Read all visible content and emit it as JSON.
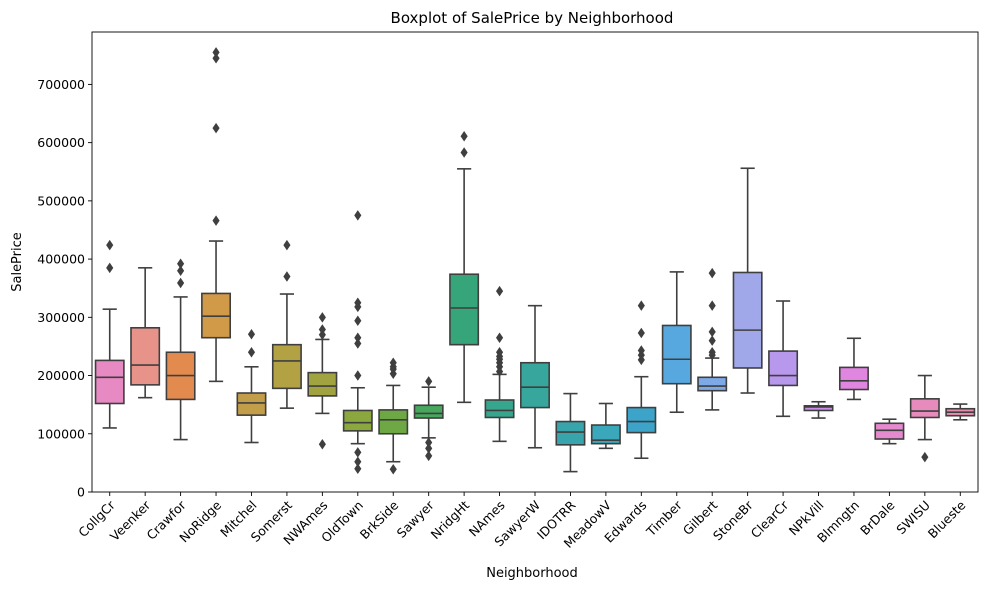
{
  "chart_data": {
    "type": "box",
    "title": "Boxplot of SalePrice by Neighborhood",
    "xlabel": "Neighborhood",
    "ylabel": "SalePrice",
    "ylim": [
      0,
      790000
    ],
    "yticks": [
      0,
      100000,
      200000,
      300000,
      400000,
      500000,
      600000,
      700000
    ],
    "categories": [
      "CollgCr",
      "Veenker",
      "Crawfor",
      "NoRidge",
      "Mitchel",
      "Somerst",
      "NWAmes",
      "OldTown",
      "BrkSide",
      "Sawyer",
      "NridgHt",
      "NAmes",
      "SawyerW",
      "IDOTRR",
      "MeadowV",
      "Edwards",
      "Timber",
      "Gilbert",
      "StoneBr",
      "ClearCr",
      "NPkVill",
      "Blmngtn",
      "BrDale",
      "SWISU",
      "Blueste"
    ],
    "colors": [
      "#E78AC3",
      "#E8938A",
      "#E38A4F",
      "#D19A48",
      "#C39E4A",
      "#B3A244",
      "#A0A33F",
      "#8BA83E",
      "#6EA844",
      "#47A75C",
      "#36A57A",
      "#36A68E",
      "#37A69D",
      "#38A5AC",
      "#3AA7BA",
      "#3CA4C9",
      "#58A8E0",
      "#7DA9E7",
      "#A0A8EA",
      "#B898EC",
      "#CD8EEB",
      "#E086E1",
      "#E58ACE",
      "#E78BBD",
      "#E88DB0"
    ],
    "boxes": [
      {
        "name": "CollgCr",
        "whislo": 110000,
        "q1": 152000,
        "med": 197000,
        "q3": 226000,
        "whishi": 314000,
        "fliers": [
          385000,
          424000
        ]
      },
      {
        "name": "Veenker",
        "whislo": 162000,
        "q1": 184000,
        "med": 218000,
        "q3": 282000,
        "whishi": 385000,
        "fliers": []
      },
      {
        "name": "Crawfor",
        "whislo": 90000,
        "q1": 159000,
        "med": 200000,
        "q3": 240000,
        "whishi": 335000,
        "fliers": [
          359000,
          380000,
          392000
        ]
      },
      {
        "name": "NoRidge",
        "whislo": 190000,
        "q1": 265000,
        "med": 302000,
        "q3": 341000,
        "whishi": 431000,
        "fliers": [
          466000,
          625000,
          745000,
          755000
        ]
      },
      {
        "name": "Mitchel",
        "whislo": 85000,
        "q1": 132000,
        "med": 153000,
        "q3": 170000,
        "whishi": 215000,
        "fliers": [
          240000,
          271000
        ]
      },
      {
        "name": "Somerst",
        "whislo": 144000,
        "q1": 178000,
        "med": 225000,
        "q3": 253000,
        "whishi": 340000,
        "fliers": [
          370000,
          424000
        ]
      },
      {
        "name": "NWAmes",
        "whislo": 135000,
        "q1": 165000,
        "med": 182000,
        "q3": 205000,
        "whishi": 262000,
        "fliers": [
          82000,
          270000,
          279000,
          300000
        ]
      },
      {
        "name": "OldTown",
        "whislo": 83000,
        "q1": 105000,
        "med": 119000,
        "q3": 140000,
        "whishi": 179000,
        "fliers": [
          40000,
          52000,
          68000,
          200000,
          255000,
          265000,
          294000,
          318000,
          325000,
          475000
        ]
      },
      {
        "name": "BrkSide",
        "whislo": 52000,
        "q1": 100000,
        "med": 124000,
        "q3": 141000,
        "whishi": 183000,
        "fliers": [
          39000,
          203000,
          211000,
          215000,
          222000
        ]
      },
      {
        "name": "Sawyer",
        "whislo": 93000,
        "q1": 127000,
        "med": 135000,
        "q3": 149000,
        "whishi": 180000,
        "fliers": [
          62000,
          75000,
          85000,
          190000
        ]
      },
      {
        "name": "NridgHt",
        "whislo": 154000,
        "q1": 253000,
        "med": 316000,
        "q3": 374000,
        "whishi": 555000,
        "fliers": [
          583000,
          611000
        ]
      },
      {
        "name": "NAmes",
        "whislo": 87000,
        "q1": 128000,
        "med": 140000,
        "q3": 158000,
        "whishi": 202000,
        "fliers": [
          207000,
          215000,
          222000,
          228000,
          233000,
          240000,
          265000,
          345000
        ]
      },
      {
        "name": "SawyerW",
        "whislo": 76000,
        "q1": 145000,
        "med": 180000,
        "q3": 222000,
        "whishi": 320000,
        "fliers": []
      },
      {
        "name": "IDOTRR",
        "whislo": 35000,
        "q1": 81000,
        "med": 103000,
        "q3": 121000,
        "whishi": 169000,
        "fliers": []
      },
      {
        "name": "MeadowV",
        "whislo": 75000,
        "q1": 83000,
        "med": 89000,
        "q3": 115000,
        "whishi": 152000,
        "fliers": []
      },
      {
        "name": "Edwards",
        "whislo": 58000,
        "q1": 102000,
        "med": 121000,
        "q3": 145000,
        "whishi": 198000,
        "fliers": [
          227000,
          235000,
          243000,
          273000,
          320000
        ]
      },
      {
        "name": "Timber",
        "whislo": 137000,
        "q1": 186000,
        "med": 228000,
        "q3": 286000,
        "whishi": 378000,
        "fliers": []
      },
      {
        "name": "Gilbert",
        "whislo": 141000,
        "q1": 174000,
        "med": 182000,
        "q3": 197000,
        "whishi": 230000,
        "fliers": [
          235000,
          240000,
          260000,
          275000,
          320000,
          376000
        ]
      },
      {
        "name": "StoneBr",
        "whislo": 170000,
        "q1": 213000,
        "med": 278000,
        "q3": 377000,
        "whishi": 556000,
        "fliers": []
      },
      {
        "name": "ClearCr",
        "whislo": 130000,
        "q1": 183000,
        "med": 200000,
        "q3": 242000,
        "whishi": 328000,
        "fliers": []
      },
      {
        "name": "NPkVill",
        "whislo": 127000,
        "q1": 140000,
        "med": 146000,
        "q3": 148000,
        "whishi": 155000,
        "fliers": []
      },
      {
        "name": "Blmngtn",
        "whislo": 159000,
        "q1": 176000,
        "med": 191000,
        "q3": 214000,
        "whishi": 264000,
        "fliers": []
      },
      {
        "name": "BrDale",
        "whislo": 83000,
        "q1": 91000,
        "med": 106000,
        "q3": 118000,
        "whishi": 125000,
        "fliers": []
      },
      {
        "name": "SWISU",
        "whislo": 90000,
        "q1": 128000,
        "med": 139000,
        "q3": 160000,
        "whishi": 200000,
        "fliers": [
          60000
        ]
      },
      {
        "name": "Blueste",
        "whislo": 124000,
        "q1": 131000,
        "med": 137000,
        "q3": 143000,
        "whishi": 151000,
        "fliers": []
      }
    ]
  }
}
